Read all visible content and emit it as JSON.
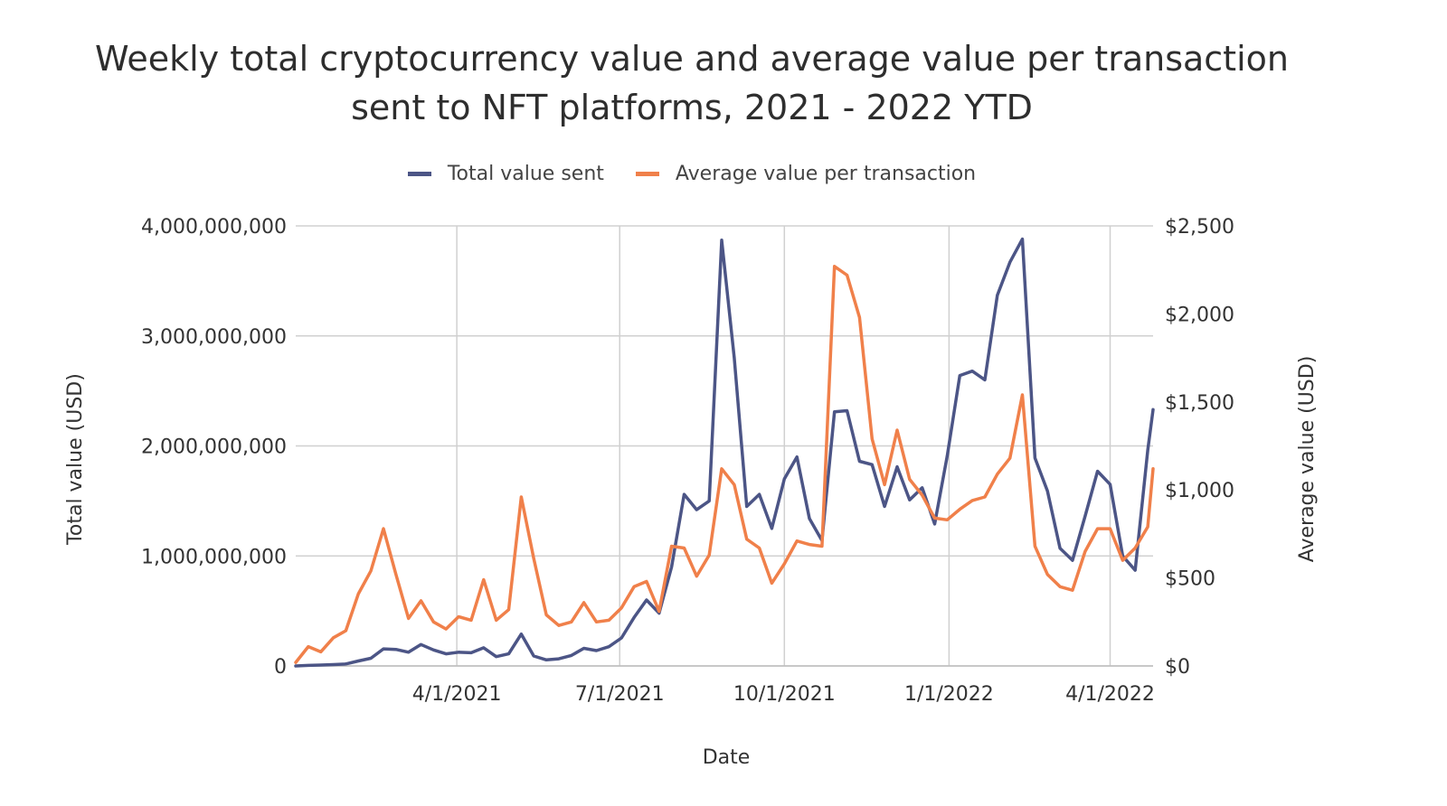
{
  "chart_data": {
    "type": "line",
    "title": "Weekly total cryptocurrency value and average value per transaction sent to NFT platforms, 2021 - 2022 YTD",
    "title_lines": [
      "Weekly total cryptocurrency value and average value per transaction",
      "sent to NFT platforms, 2021 - 2022 YTD"
    ],
    "xlabel": "Date",
    "ylabel_left": "Total value (USD)",
    "ylabel_right": "Average value (USD)",
    "x_start": "2021-01-01",
    "x_end": "2022-04-25",
    "x_ticks": [
      {
        "date": "2021-04-01",
        "label": "4/1/2021"
      },
      {
        "date": "2021-07-01",
        "label": "7/1/2021"
      },
      {
        "date": "2021-10-01",
        "label": "10/1/2021"
      },
      {
        "date": "2022-01-01",
        "label": "1/1/2022"
      },
      {
        "date": "2022-04-01",
        "label": "4/1/2022"
      }
    ],
    "y_left": {
      "range": [
        0,
        4000000000
      ],
      "ticks": [
        0,
        1000000000,
        2000000000,
        3000000000,
        4000000000
      ],
      "tick_labels": [
        "0",
        "1,000,000,000",
        "2,000,000,000",
        "3,000,000,000",
        "4,000,000,000"
      ]
    },
    "y_right": {
      "range": [
        0,
        2500
      ],
      "ticks": [
        0,
        500,
        1000,
        1500,
        2000,
        2500
      ],
      "tick_labels": [
        "$0",
        "$500",
        "$1,000",
        "$1,500",
        "$2,000",
        "$2,500"
      ]
    },
    "grid": true,
    "legend_position": "top",
    "series": [
      {
        "name": "Total value sent",
        "axis": "left",
        "color": "#4c5586",
        "x": [
          "2021-01-01",
          "2021-01-08",
          "2021-01-15",
          "2021-01-22",
          "2021-01-29",
          "2021-02-05",
          "2021-02-12",
          "2021-02-19",
          "2021-02-26",
          "2021-03-05",
          "2021-03-12",
          "2021-03-19",
          "2021-03-26",
          "2021-04-02",
          "2021-04-09",
          "2021-04-16",
          "2021-04-23",
          "2021-04-30",
          "2021-05-07",
          "2021-05-14",
          "2021-05-21",
          "2021-05-28",
          "2021-06-04",
          "2021-06-11",
          "2021-06-18",
          "2021-06-25",
          "2021-07-02",
          "2021-07-09",
          "2021-07-16",
          "2021-07-23",
          "2021-07-30",
          "2021-08-06",
          "2021-08-13",
          "2021-08-20",
          "2021-08-27",
          "2021-09-03",
          "2021-09-10",
          "2021-09-17",
          "2021-09-24",
          "2021-10-01",
          "2021-10-08",
          "2021-10-15",
          "2021-10-22",
          "2021-10-29",
          "2021-11-05",
          "2021-11-12",
          "2021-11-19",
          "2021-11-26",
          "2021-12-03",
          "2021-12-10",
          "2021-12-17",
          "2021-12-24",
          "2021-12-31",
          "2022-01-07",
          "2022-01-14",
          "2022-01-21",
          "2022-01-28",
          "2022-02-04",
          "2022-02-11",
          "2022-02-18",
          "2022-02-25",
          "2022-03-04",
          "2022-03-11",
          "2022-03-18",
          "2022-03-25",
          "2022-04-01",
          "2022-04-08",
          "2022-04-15",
          "2022-04-22",
          "2022-04-29"
        ],
        "values": [
          0,
          5000000,
          8000000,
          12000000,
          18000000,
          45000000,
          70000000,
          155000000,
          150000000,
          125000000,
          195000000,
          145000000,
          110000000,
          125000000,
          120000000,
          165000000,
          85000000,
          110000000,
          290000000,
          90000000,
          55000000,
          65000000,
          95000000,
          160000000,
          140000000,
          175000000,
          255000000,
          440000000,
          600000000,
          480000000,
          900000000,
          1560000000,
          1420000000,
          1500000000,
          3870000000,
          2800000000,
          1450000000,
          1560000000,
          1250000000,
          1700000000,
          1900000000,
          1340000000,
          1140000000,
          2310000000,
          2320000000,
          1860000000,
          1830000000,
          1450000000,
          1810000000,
          1510000000,
          1620000000,
          1290000000,
          1910000000,
          2640000000,
          2680000000,
          2600000000,
          3370000000,
          3670000000,
          3880000000,
          1890000000,
          1590000000,
          1070000000,
          960000000,
          1360000000,
          1770000000,
          1650000000,
          1000000000,
          870000000,
          1960000000,
          2330000000
        ]
      },
      {
        "name": "Average value per transaction",
        "axis": "right",
        "color": "#f0804a",
        "x": [
          "2021-01-01",
          "2021-01-08",
          "2021-01-15",
          "2021-01-22",
          "2021-01-29",
          "2021-02-05",
          "2021-02-12",
          "2021-02-19",
          "2021-02-26",
          "2021-03-05",
          "2021-03-12",
          "2021-03-19",
          "2021-03-26",
          "2021-04-02",
          "2021-04-09",
          "2021-04-16",
          "2021-04-23",
          "2021-04-30",
          "2021-05-07",
          "2021-05-14",
          "2021-05-21",
          "2021-05-28",
          "2021-06-04",
          "2021-06-11",
          "2021-06-18",
          "2021-06-25",
          "2021-07-02",
          "2021-07-09",
          "2021-07-16",
          "2021-07-23",
          "2021-07-30",
          "2021-08-06",
          "2021-08-13",
          "2021-08-20",
          "2021-08-27",
          "2021-09-03",
          "2021-09-10",
          "2021-09-17",
          "2021-09-24",
          "2021-10-01",
          "2021-10-08",
          "2021-10-15",
          "2021-10-22",
          "2021-10-29",
          "2021-11-05",
          "2021-11-12",
          "2021-11-19",
          "2021-11-26",
          "2021-12-03",
          "2021-12-10",
          "2021-12-17",
          "2021-12-24",
          "2021-12-31",
          "2022-01-07",
          "2022-01-14",
          "2022-01-21",
          "2022-01-28",
          "2022-02-04",
          "2022-02-11",
          "2022-02-18",
          "2022-02-25",
          "2022-03-04",
          "2022-03-11",
          "2022-03-18",
          "2022-03-25",
          "2022-04-01",
          "2022-04-08",
          "2022-04-15",
          "2022-04-22",
          "2022-04-29"
        ],
        "values": [
          20,
          110,
          80,
          160,
          200,
          410,
          540,
          780,
          520,
          270,
          370,
          250,
          210,
          280,
          260,
          490,
          260,
          320,
          960,
          610,
          290,
          230,
          250,
          360,
          250,
          260,
          330,
          450,
          480,
          310,
          680,
          670,
          510,
          630,
          1120,
          1030,
          720,
          670,
          470,
          580,
          710,
          690,
          680,
          2270,
          2220,
          1980,
          1290,
          1030,
          1340,
          1060,
          970,
          840,
          830,
          890,
          940,
          960,
          1090,
          1180,
          1540,
          680,
          520,
          450,
          430,
          650,
          780,
          780,
          600,
          670,
          790,
          1120
        ]
      }
    ]
  }
}
